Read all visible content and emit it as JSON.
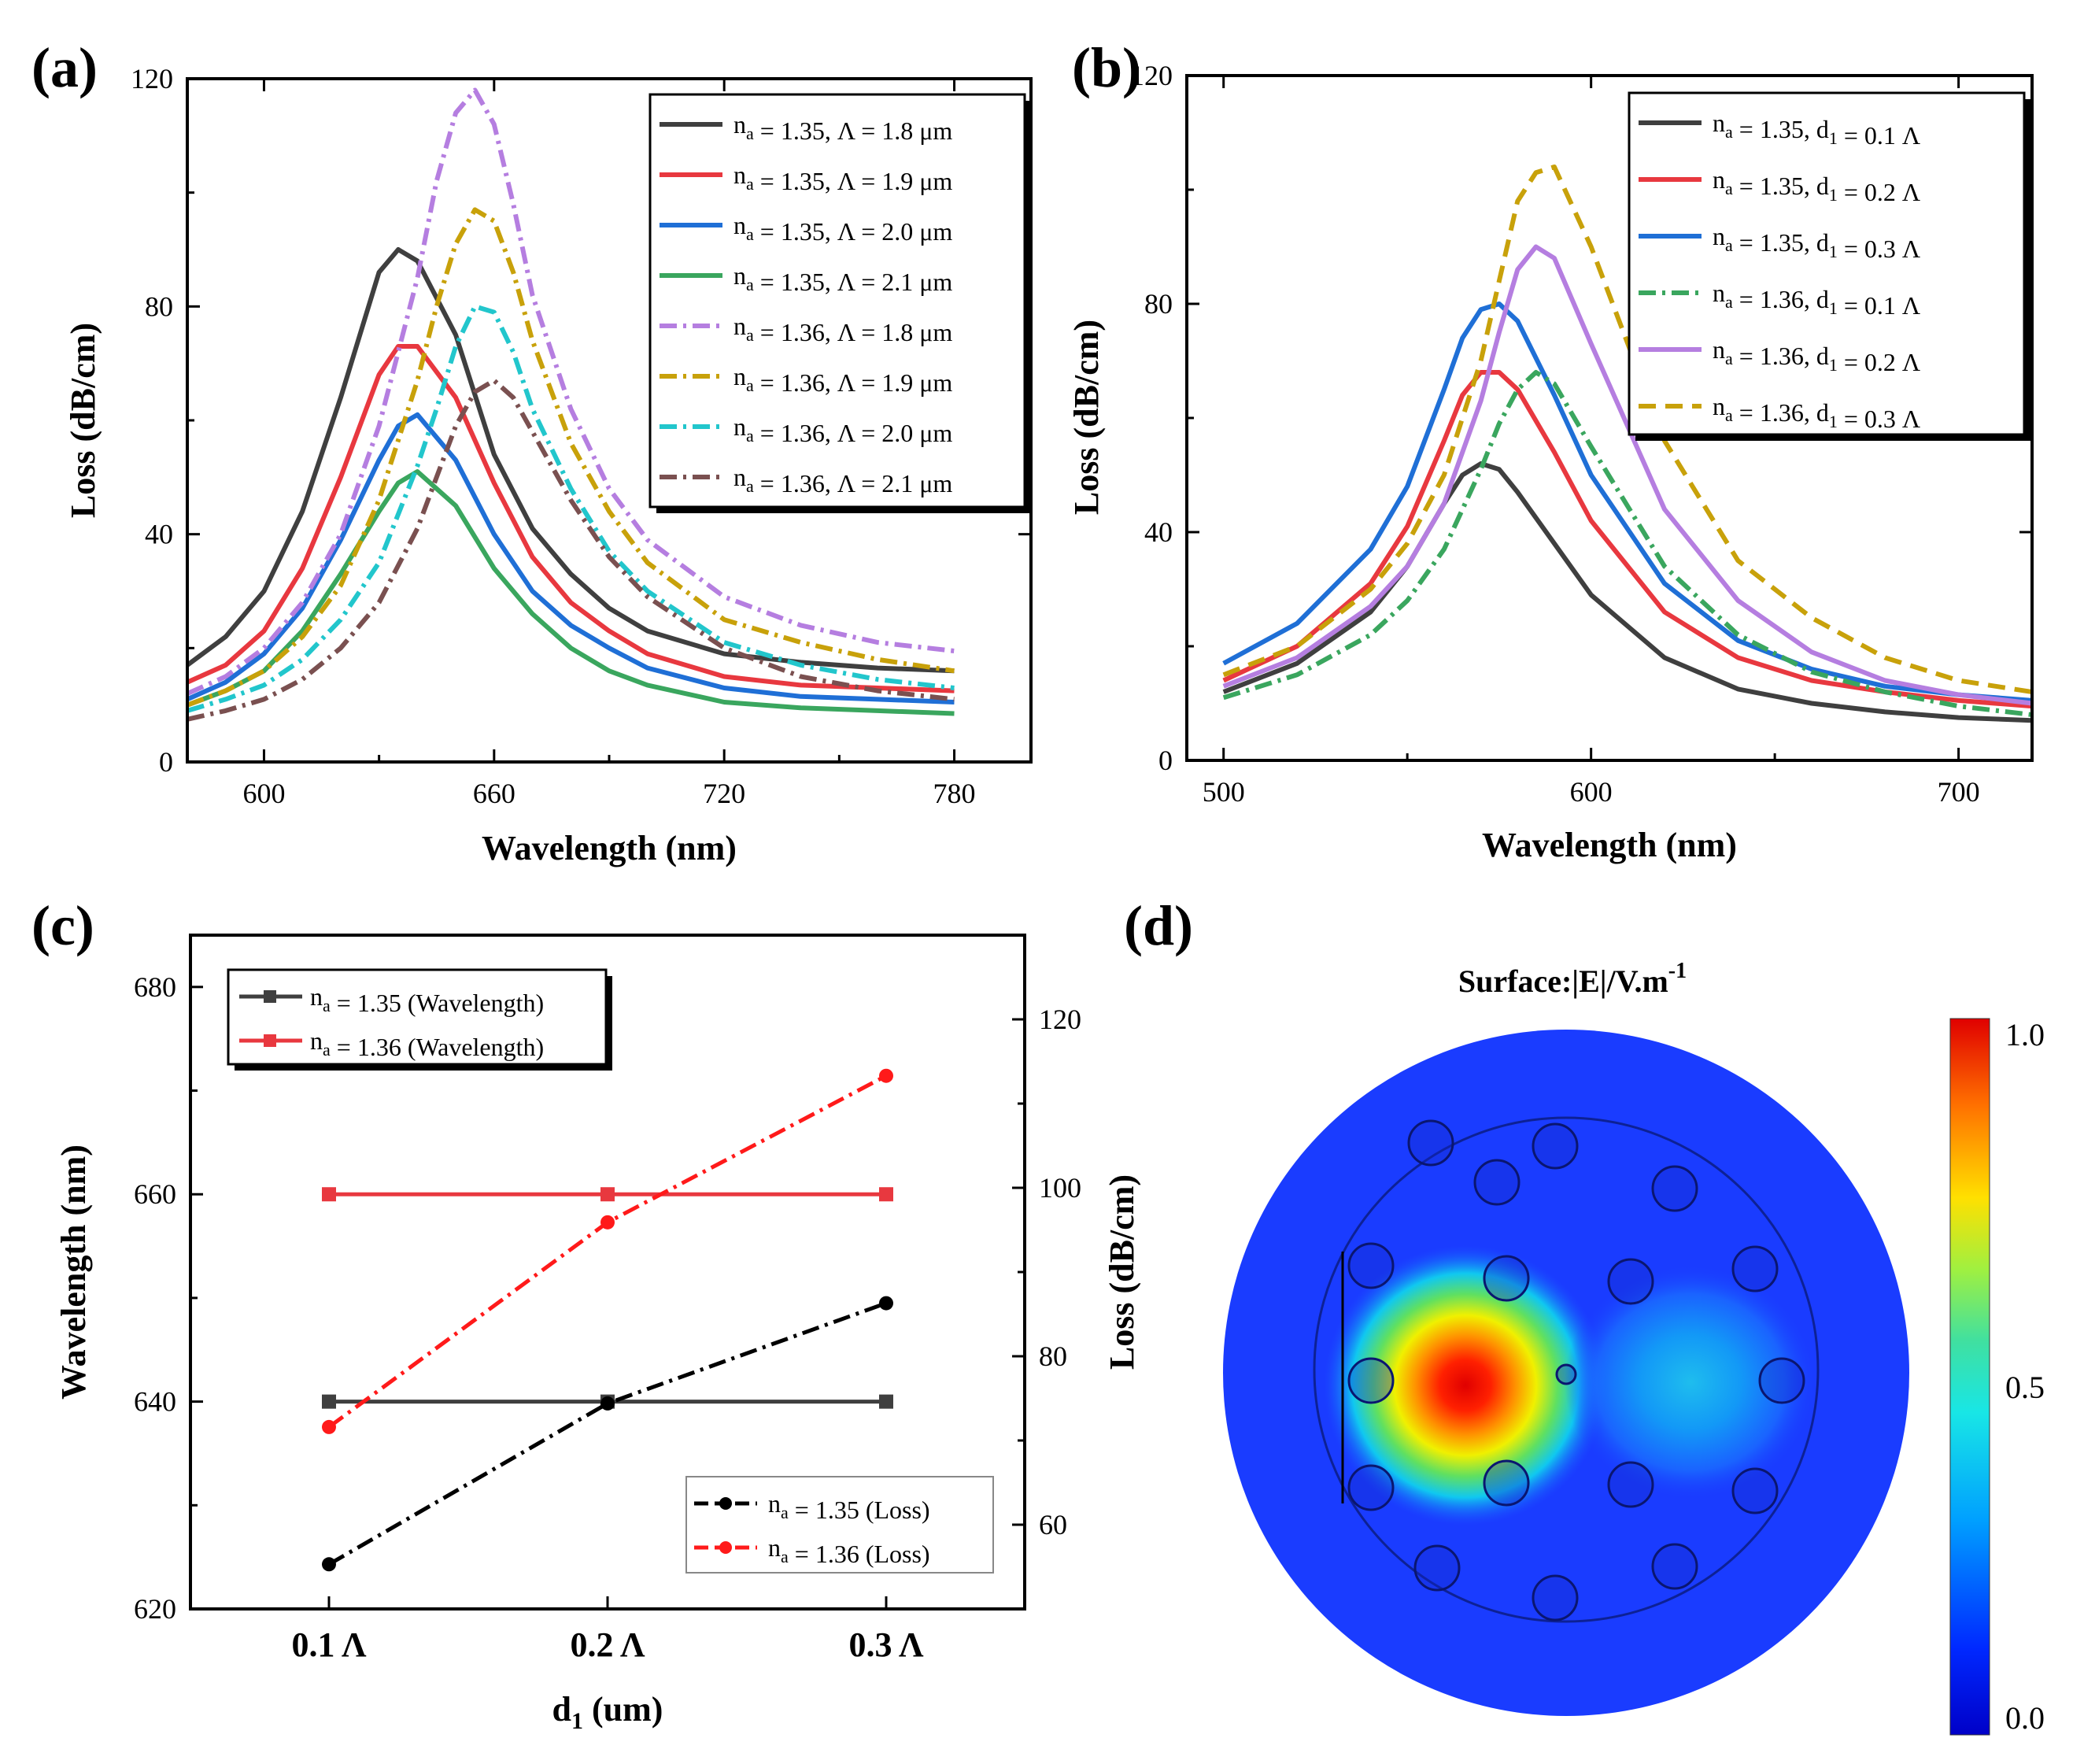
{
  "colors": {
    "black": "#3f3f3f",
    "red": "#e8383f",
    "blue": "#1f6fd6",
    "green": "#3aa65e",
    "purple": "#b57ee0",
    "gold": "#c8a10a",
    "cyan": "#22c6cc",
    "brown": "#7a5050",
    "lossRed": "#ff1a1a",
    "lossBlack": "#000000"
  },
  "chart_data": [
    {
      "panel": "(a)",
      "type": "line",
      "xlabel": "Wavelength (nm)",
      "ylabel": "Loss (dB/cm)",
      "xlim": [
        580,
        800
      ],
      "ylim": [
        0,
        120
      ],
      "xticks": [
        600,
        660,
        720,
        780
      ],
      "yticks": [
        0,
        40,
        80,
        120
      ],
      "legend_position": "top-right",
      "series": [
        {
          "label": "n_a = 1.35, Λ = 1.8 μm",
          "colorKey": "black",
          "dash": "solid",
          "x": [
            580,
            590,
            600,
            610,
            620,
            630,
            635,
            640,
            650,
            660,
            670,
            680,
            690,
            700,
            720,
            740,
            760,
            780
          ],
          "y": [
            17,
            22,
            30,
            44,
            64,
            86,
            90,
            88,
            75,
            54,
            41,
            33,
            27,
            23,
            19,
            17.5,
            16.5,
            16
          ]
        },
        {
          "label": "n_a = 1.35, Λ = 1.9 μm",
          "colorKey": "red",
          "dash": "solid",
          "x": [
            580,
            590,
            600,
            610,
            620,
            630,
            635,
            640,
            650,
            660,
            670,
            680,
            690,
            700,
            720,
            740,
            760,
            780
          ],
          "y": [
            14,
            17,
            23,
            34,
            50,
            68,
            73,
            73,
            64,
            49,
            36,
            28,
            23,
            19,
            15,
            13.5,
            13,
            12.5
          ]
        },
        {
          "label": "n_a = 1.35, Λ = 2.0 μm",
          "colorKey": "blue",
          "dash": "solid",
          "x": [
            580,
            590,
            600,
            610,
            620,
            630,
            635,
            640,
            650,
            660,
            670,
            680,
            690,
            700,
            720,
            740,
            760,
            780
          ],
          "y": [
            11,
            14,
            19,
            27,
            39,
            53,
            59,
            61,
            53,
            40,
            30,
            24,
            20,
            16.5,
            13,
            11.5,
            11,
            10.5
          ]
        },
        {
          "label": "n_a = 1.35, Λ = 2.1 μm",
          "colorKey": "green",
          "dash": "solid",
          "x": [
            580,
            590,
            600,
            610,
            620,
            630,
            635,
            640,
            650,
            660,
            670,
            680,
            690,
            700,
            720,
            740,
            760,
            780
          ],
          "y": [
            10,
            12.5,
            16,
            23,
            33,
            44,
            49,
            51,
            45,
            34,
            26,
            20,
            16,
            13.5,
            10.5,
            9.5,
            9,
            8.5
          ]
        },
        {
          "label": "n_a = 1.36, Λ = 1.8 μm",
          "colorKey": "purple",
          "dash": "dashdot",
          "x": [
            580,
            590,
            600,
            610,
            620,
            630,
            640,
            645,
            650,
            655,
            660,
            665,
            670,
            680,
            690,
            700,
            720,
            740,
            760,
            780
          ],
          "y": [
            12,
            15,
            20,
            28,
            40,
            59,
            85,
            102,
            114,
            118,
            112,
            98,
            82,
            62,
            48,
            39,
            29,
            24,
            21,
            19.5
          ]
        },
        {
          "label": "n_a = 1.36, Λ = 1.9 μm",
          "colorKey": "gold",
          "dash": "dashdot",
          "x": [
            580,
            590,
            600,
            610,
            620,
            630,
            640,
            645,
            650,
            655,
            660,
            665,
            670,
            680,
            690,
            700,
            720,
            740,
            760,
            780
          ],
          "y": [
            10,
            12.5,
            16,
            22,
            31,
            46,
            67,
            80,
            91,
            97,
            95,
            86,
            74,
            56,
            44,
            35,
            25,
            21,
            18,
            16
          ]
        },
        {
          "label": "n_a = 1.36, Λ = 2.0 μm",
          "colorKey": "cyan",
          "dash": "dashdot",
          "x": [
            580,
            590,
            600,
            610,
            620,
            630,
            640,
            645,
            650,
            655,
            660,
            665,
            670,
            680,
            690,
            700,
            720,
            740,
            760,
            780
          ],
          "y": [
            9,
            11,
            13.5,
            18,
            25,
            35,
            52,
            62,
            73,
            80,
            79,
            72,
            62,
            48,
            37,
            30,
            21,
            17,
            14.5,
            13
          ]
        },
        {
          "label": "n_a = 1.36, Λ = 2.1 μm",
          "colorKey": "brown",
          "dash": "dashdot",
          "x": [
            580,
            590,
            600,
            610,
            620,
            630,
            640,
            645,
            650,
            655,
            660,
            665,
            670,
            680,
            690,
            700,
            720,
            740,
            760,
            780
          ],
          "y": [
            7.5,
            9,
            11,
            14.5,
            20,
            28,
            41,
            50,
            59,
            65,
            67,
            64,
            58,
            46,
            36,
            29,
            20,
            15,
            12.5,
            11
          ]
        }
      ]
    },
    {
      "panel": "(b)",
      "type": "line",
      "xlabel": "Wavelength (nm)",
      "ylabel": "Loss (dB/cm)",
      "xlim": [
        490,
        720
      ],
      "ylim": [
        0,
        120
      ],
      "xticks": [
        500,
        600,
        700
      ],
      "yticks": [
        0,
        40,
        80,
        120
      ],
      "legend_position": "top-right",
      "series": [
        {
          "label": "n_a = 1.35, d_1 = 0.1 Λ",
          "colorKey": "black",
          "dash": "solid",
          "x": [
            500,
            520,
            540,
            550,
            560,
            565,
            570,
            575,
            580,
            590,
            600,
            620,
            640,
            660,
            680,
            700,
            720
          ],
          "y": [
            12,
            17,
            26,
            34,
            45,
            50,
            52,
            51,
            47,
            38,
            29,
            18,
            12.5,
            10,
            8.5,
            7.5,
            7
          ]
        },
        {
          "label": "n_a = 1.35, d_1 = 0.2 Λ",
          "colorKey": "red",
          "dash": "solid",
          "x": [
            500,
            520,
            540,
            550,
            560,
            565,
            570,
            575,
            580,
            590,
            600,
            620,
            640,
            660,
            680,
            700,
            720
          ],
          "y": [
            14,
            20,
            31,
            41,
            56,
            64,
            68,
            68,
            65,
            54,
            42,
            26,
            18,
            14,
            12,
            10.5,
            9.5
          ]
        },
        {
          "label": "n_a = 1.35, d_1 = 0.3 Λ",
          "colorKey": "blue",
          "dash": "solid",
          "x": [
            500,
            520,
            540,
            550,
            560,
            565,
            570,
            575,
            580,
            590,
            600,
            620,
            640,
            660,
            680,
            700,
            720
          ],
          "y": [
            17,
            24,
            37,
            48,
            65,
            74,
            79,
            80,
            77,
            64,
            50,
            31,
            21,
            16,
            13,
            11.5,
            10.5
          ]
        },
        {
          "label": "n_a = 1.36, d_1 = 0.1 Λ",
          "colorKey": "green",
          "dash": "dashdot",
          "x": [
            500,
            520,
            540,
            550,
            560,
            570,
            575,
            580,
            585,
            590,
            600,
            620,
            640,
            660,
            680,
            700,
            720
          ],
          "y": [
            11,
            15,
            22,
            28,
            37,
            51,
            59,
            65,
            68,
            66,
            55,
            34,
            22,
            15.5,
            12,
            9.5,
            8
          ]
        },
        {
          "label": "n_a = 1.36, d_1 = 0.2 Λ",
          "colorKey": "purple",
          "dash": "solid",
          "x": [
            500,
            520,
            540,
            550,
            560,
            570,
            575,
            580,
            585,
            590,
            600,
            620,
            640,
            660,
            680,
            700,
            720
          ],
          "y": [
            13,
            18,
            27,
            34,
            45,
            63,
            75,
            86,
            90,
            88,
            73,
            44,
            28,
            19,
            14,
            11.5,
            10
          ]
        },
        {
          "label": "n_a = 1.36, d_1 = 0.3 Λ",
          "colorKey": "gold",
          "dash": "dash",
          "x": [
            500,
            520,
            540,
            550,
            560,
            570,
            575,
            580,
            585,
            590,
            600,
            620,
            640,
            660,
            680,
            700,
            720
          ],
          "y": [
            15,
            20,
            30,
            38,
            50,
            70,
            84,
            98,
            103,
            104,
            90,
            56,
            35,
            25,
            18,
            14,
            12
          ]
        }
      ]
    },
    {
      "panel": "(c)",
      "type": "line",
      "xlabel": "d₁ (um)",
      "ylabel": "Wavelength (nm)",
      "ylabel_right": "Loss (dB/cm)",
      "categories": [
        "0.1 Λ",
        "0.2 Λ",
        "0.3 Λ"
      ],
      "ylim": [
        620,
        685
      ],
      "yticks": [
        620,
        640,
        660,
        680
      ],
      "ylim_right": [
        50,
        130
      ],
      "yticks_right": [
        60,
        80,
        100,
        120
      ],
      "wavelength_series": [
        {
          "label": "n_a = 1.35 (Wavelength)",
          "colorKey": "black",
          "values": [
            640,
            640,
            640
          ]
        },
        {
          "label": "n_a = 1.36 (Wavelength)",
          "colorKey": "red",
          "values": [
            660,
            660,
            660
          ]
        }
      ],
      "loss_series": [
        {
          "label": "n_a = 1.35 (Loss)",
          "colorKey": "lossBlack",
          "values": [
            55.3,
            74.4,
            86.3
          ]
        },
        {
          "label": "n_a = 1.36 (Loss)",
          "colorKey": "lossRed",
          "values": [
            71.6,
            95.9,
            113.3
          ]
        }
      ],
      "legend_top_position": "top-left",
      "legend_bottom_position": "bottom-right"
    },
    {
      "panel": "(d)",
      "type": "heatmap",
      "title": "Surface:|E|/V.m",
      "title_sup": "-1",
      "colorbar_ticks": [
        "1.0",
        "0.5",
        "0.0"
      ],
      "colorbar_values": [
        1.0,
        0.5,
        0.0
      ]
    }
  ]
}
